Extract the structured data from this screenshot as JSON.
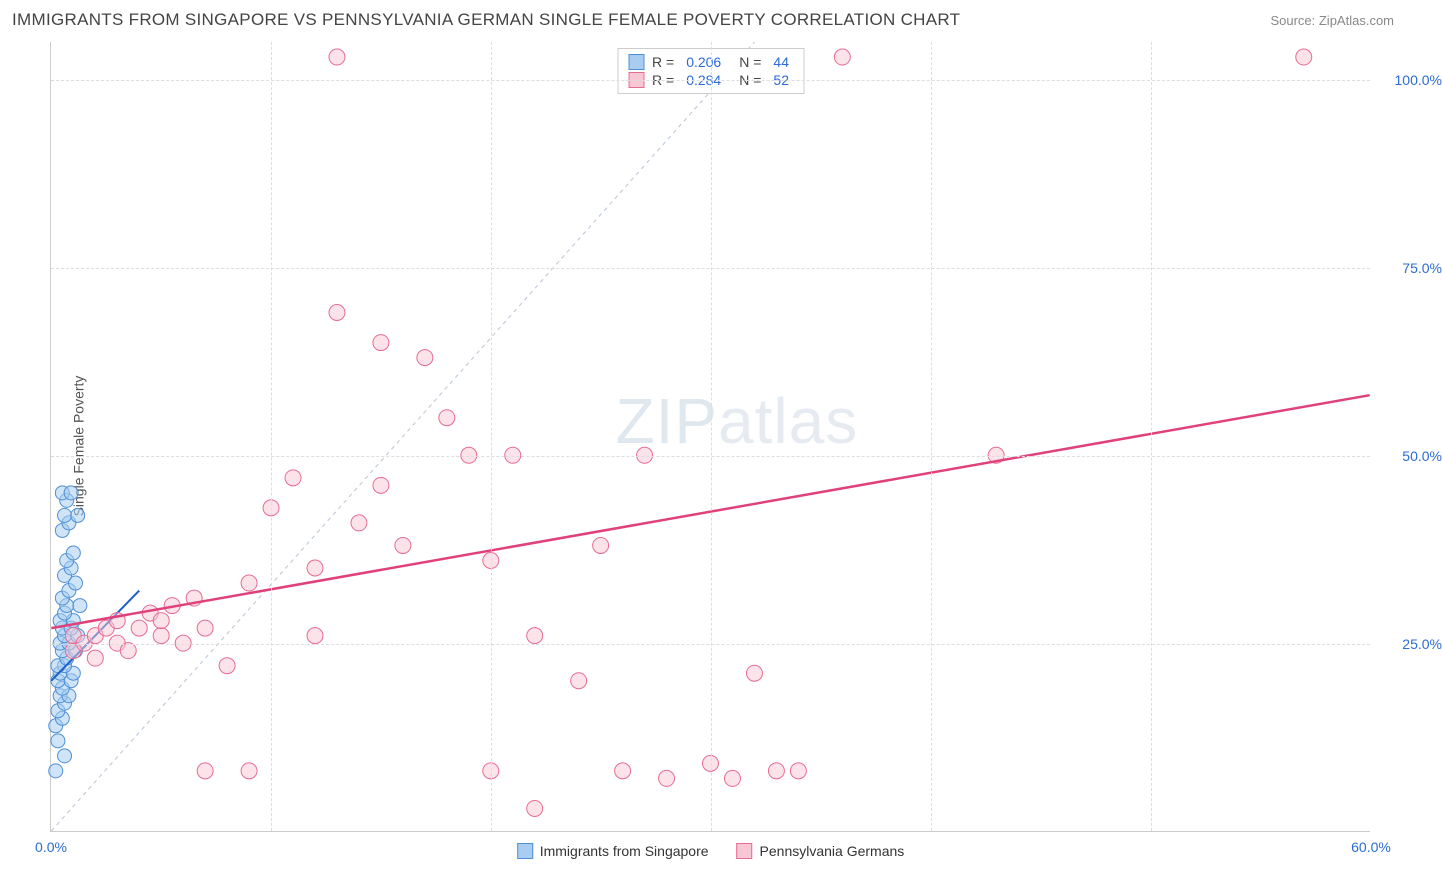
{
  "header": {
    "title": "IMMIGRANTS FROM SINGAPORE VS PENNSYLVANIA GERMAN SINGLE FEMALE POVERTY CORRELATION CHART",
    "source": "Source: ZipAtlas.com"
  },
  "chart": {
    "type": "scatter",
    "ylabel": "Single Female Poverty",
    "watermark": "ZIPatlas",
    "background_color": "#ffffff",
    "grid_color": "#dddddd",
    "axis_color": "#cccccc",
    "tick_color": "#2a6cd4",
    "xlim": [
      0,
      60
    ],
    "ylim": [
      0,
      105
    ],
    "xticks": [
      {
        "v": 0,
        "label": "0.0%"
      },
      {
        "v": 60,
        "label": "60.0%"
      }
    ],
    "xgrid": [
      10,
      20,
      30,
      40,
      50
    ],
    "yticks": [
      {
        "v": 25,
        "label": "25.0%"
      },
      {
        "v": 50,
        "label": "50.0%"
      },
      {
        "v": 75,
        "label": "75.0%"
      },
      {
        "v": 100,
        "label": "100.0%"
      }
    ],
    "series": [
      {
        "name": "Immigrants from Singapore",
        "color_fill": "#a8cdf0",
        "color_stroke": "#4f8fd6",
        "marker_radius": 7,
        "fill_opacity": 0.55,
        "R": "0.206",
        "N": "44",
        "trend": {
          "x1": 0,
          "y1": 20,
          "x2": 4,
          "y2": 32,
          "color": "#1f5fc9",
          "width": 2
        },
        "diag": {
          "x1": 0,
          "y1": 0,
          "x2": 32,
          "y2": 105,
          "color": "#b7c4d6",
          "width": 1,
          "dash": "4 4"
        },
        "points": [
          [
            0.2,
            8
          ],
          [
            0.3,
            12
          ],
          [
            0.2,
            14
          ],
          [
            0.5,
            15
          ],
          [
            0.3,
            16
          ],
          [
            0.6,
            17
          ],
          [
            0.4,
            18
          ],
          [
            0.8,
            18
          ],
          [
            0.5,
            19
          ],
          [
            0.3,
            20
          ],
          [
            0.9,
            20
          ],
          [
            0.4,
            21
          ],
          [
            1.0,
            21
          ],
          [
            0.6,
            22
          ],
          [
            0.3,
            22
          ],
          [
            0.7,
            23
          ],
          [
            0.5,
            24
          ],
          [
            1.1,
            24
          ],
          [
            0.4,
            25
          ],
          [
            0.8,
            25
          ],
          [
            0.6,
            26
          ],
          [
            1.2,
            26
          ],
          [
            0.5,
            27
          ],
          [
            0.9,
            27
          ],
          [
            0.4,
            28
          ],
          [
            1.0,
            28
          ],
          [
            0.6,
            29
          ],
          [
            0.7,
            30
          ],
          [
            1.3,
            30
          ],
          [
            0.5,
            31
          ],
          [
            0.8,
            32
          ],
          [
            1.1,
            33
          ],
          [
            0.6,
            34
          ],
          [
            0.9,
            35
          ],
          [
            0.7,
            36
          ],
          [
            1.0,
            37
          ],
          [
            0.5,
            40
          ],
          [
            0.8,
            41
          ],
          [
            0.6,
            42
          ],
          [
            1.2,
            42
          ],
          [
            0.7,
            44
          ],
          [
            0.5,
            45
          ],
          [
            0.9,
            45
          ],
          [
            0.6,
            10
          ]
        ]
      },
      {
        "name": "Pennsylvania Germans",
        "color_fill": "#f7c7d4",
        "color_stroke": "#e76b96",
        "marker_radius": 8,
        "fill_opacity": 0.5,
        "R": "0.284",
        "N": "52",
        "trend": {
          "x1": 0,
          "y1": 27,
          "x2": 60,
          "y2": 58,
          "color": "#e0417a",
          "width": 2.5
        },
        "points": [
          [
            1,
            24
          ],
          [
            1,
            26
          ],
          [
            1.5,
            25
          ],
          [
            2,
            26
          ],
          [
            2,
            23
          ],
          [
            2.5,
            27
          ],
          [
            3,
            28
          ],
          [
            3,
            25
          ],
          [
            3.5,
            24
          ],
          [
            4,
            27
          ],
          [
            4.5,
            29
          ],
          [
            5,
            26
          ],
          [
            5,
            28
          ],
          [
            5.5,
            30
          ],
          [
            6,
            25
          ],
          [
            6.5,
            31
          ],
          [
            7,
            8
          ],
          [
            7,
            27
          ],
          [
            8,
            22
          ],
          [
            9,
            33
          ],
          [
            9,
            8
          ],
          [
            10,
            43
          ],
          [
            11,
            47
          ],
          [
            12,
            35
          ],
          [
            12,
            26
          ],
          [
            13,
            69
          ],
          [
            13,
            103
          ],
          [
            14,
            41
          ],
          [
            15,
            65
          ],
          [
            15,
            46
          ],
          [
            16,
            38
          ],
          [
            17,
            63
          ],
          [
            18,
            55
          ],
          [
            19,
            50
          ],
          [
            20,
            36
          ],
          [
            20,
            8
          ],
          [
            21,
            50
          ],
          [
            22,
            26
          ],
          [
            22,
            3
          ],
          [
            24,
            20
          ],
          [
            25,
            38
          ],
          [
            26,
            8
          ],
          [
            27,
            50
          ],
          [
            28,
            7
          ],
          [
            30,
            9
          ],
          [
            31,
            7
          ],
          [
            32,
            21
          ],
          [
            33,
            8
          ],
          [
            34,
            8
          ],
          [
            36,
            103
          ],
          [
            43,
            50
          ],
          [
            57,
            103
          ]
        ]
      }
    ],
    "legend_bottom": [
      {
        "label": "Immigrants from Singapore",
        "fill": "#a8cdf0",
        "stroke": "#4f8fd6"
      },
      {
        "label": "Pennsylvania Germans",
        "fill": "#f7c7d4",
        "stroke": "#e76b96"
      }
    ]
  }
}
